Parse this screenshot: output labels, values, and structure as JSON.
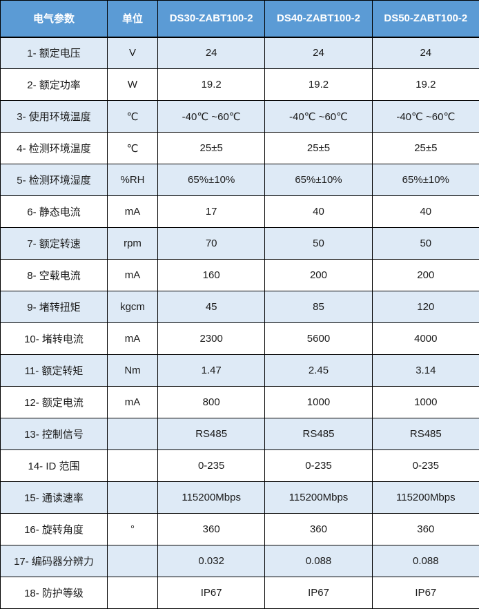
{
  "colors": {
    "header_bg": "#5b9bd5",
    "header_text": "#ffffff",
    "band_bg": "#deeaf6",
    "row_bg": "#ffffff",
    "border": "#000000",
    "text": "#1a1a1a"
  },
  "table": {
    "columns": [
      "电气参数",
      "单位",
      "DS30-ZABT100-2",
      "DS40-ZABT100-2",
      "DS50-ZABT100-2"
    ],
    "rows": [
      {
        "param": "1- 额定电压",
        "unit": "V",
        "values": [
          "24",
          "24",
          "24"
        ],
        "banded": true
      },
      {
        "param": "2- 额定功率",
        "unit": "W",
        "values": [
          "19.2",
          "19.2",
          "19.2"
        ],
        "banded": false
      },
      {
        "param": "3- 使用环境温度",
        "unit": "℃",
        "values": [
          "-40℃ ~60℃",
          "-40℃ ~60℃",
          "-40℃ ~60℃"
        ],
        "banded": true
      },
      {
        "param": "4- 检测环境温度",
        "unit": "℃",
        "values": [
          "25±5",
          "25±5",
          "25±5"
        ],
        "banded": false
      },
      {
        "param": "5- 检测环境湿度",
        "unit": "%RH",
        "values": [
          "65%±10%",
          "65%±10%",
          "65%±10%"
        ],
        "banded": true
      },
      {
        "param": "6- 静态电流",
        "unit": "mA",
        "values": [
          "17",
          "40",
          "40"
        ],
        "banded": false
      },
      {
        "param": "7- 额定转速",
        "unit": "rpm",
        "values": [
          "70",
          "50",
          "50"
        ],
        "banded": true
      },
      {
        "param": "8- 空载电流",
        "unit": "mA",
        "values": [
          "160",
          "200",
          "200"
        ],
        "banded": false
      },
      {
        "param": "9- 堵转扭矩",
        "unit": "kgcm",
        "values": [
          "45",
          "85",
          "120"
        ],
        "banded": true
      },
      {
        "param": "10- 堵转电流",
        "unit": "mA",
        "values": [
          "2300",
          "5600",
          "4000"
        ],
        "banded": false
      },
      {
        "param": "11- 额定转矩",
        "unit": "Nm",
        "values": [
          "1.47",
          "2.45",
          "3.14"
        ],
        "banded": true
      },
      {
        "param": "12- 额定电流",
        "unit": "mA",
        "values": [
          "800",
          "1000",
          "1000"
        ],
        "banded": false
      },
      {
        "param": "13- 控制信号",
        "unit": "",
        "values": [
          "RS485",
          "RS485",
          "RS485"
        ],
        "banded": true
      },
      {
        "param": "14- ID 范围",
        "unit": "",
        "values": [
          "0-235",
          "0-235",
          "0-235"
        ],
        "banded": false
      },
      {
        "param": "15- 通读速率",
        "unit": "",
        "values": [
          "115200Mbps",
          "115200Mbps",
          "115200Mbps"
        ],
        "banded": true
      },
      {
        "param": "16- 旋转角度",
        "unit": "°",
        "values": [
          "360",
          "360",
          "360"
        ],
        "banded": false
      },
      {
        "param": "17- 编码器分辨力",
        "unit": "",
        "values": [
          "0.032",
          "0.088",
          "0.088"
        ],
        "banded": true
      },
      {
        "param": "18- 防护等级",
        "unit": "",
        "values": [
          "IP67",
          "IP67",
          "IP67"
        ],
        "banded": false
      }
    ]
  }
}
